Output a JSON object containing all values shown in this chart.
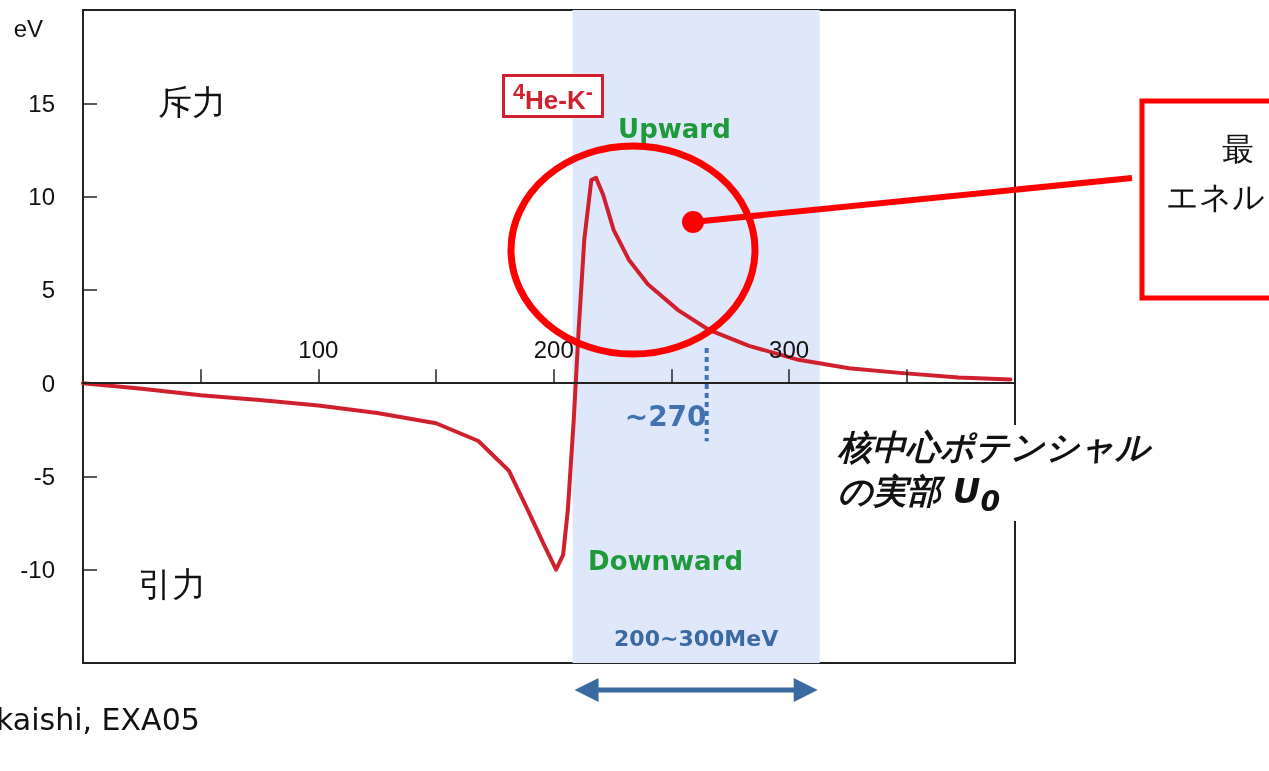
{
  "chart_data": {
    "type": "line",
    "ylabel": "eV",
    "x": [
      0,
      25,
      50,
      75,
      100,
      125,
      150,
      168,
      181,
      189,
      196,
      201,
      204,
      206,
      208.5,
      210.6,
      213,
      216,
      218,
      221,
      225.5,
      232,
      240,
      253,
      266,
      283,
      304,
      325.5,
      347,
      372,
      394
    ],
    "series": [
      {
        "name": "$^{4}$He-K$^{-}$",
        "color": "#d0202e",
        "values": [
          0,
          -0.3,
          -0.65,
          -0.9,
          -1.2,
          -1.6,
          -2.15,
          -3.1,
          -4.7,
          -6.8,
          -8.7,
          -10,
          -9.2,
          -6.8,
          -2,
          2.85,
          7.7,
          10.9,
          11.0,
          10.1,
          8.2,
          6.6,
          5.3,
          3.9,
          2.85,
          2.0,
          1.25,
          0.8,
          0.55,
          0.3,
          0.2
        ]
      }
    ],
    "xlim": [
      0,
      396
    ],
    "xticks": [
      {
        "value": 50,
        "label": null
      },
      100,
      {
        "value": 150,
        "label": null
      },
      200,
      {
        "value": 250,
        "label": null
      },
      300,
      {
        "value": 350,
        "label": null
      }
    ],
    "ylim": [
      -15,
      20
    ],
    "yticks": [
      -10,
      -5,
      0,
      5,
      10,
      15
    ],
    "bands": [
      {
        "axis": "x",
        "from": 208,
        "to": 313,
        "label": "200~300MeV",
        "color": "#dfe8fb"
      }
    ],
    "annotations": [
      "斥力",
      "引力",
      {
        "text": "Upward",
        "x": 218,
        "y": 11
      },
      {
        "text": "Downward",
        "x": 201,
        "y": -10
      },
      {
        "text": "~270",
        "x": 265,
        "y": 2.85
      },
      "核中心ポテンシャルの実部 U$_{0}$",
      "最",
      "エネル",
      "kaishi, EXA05"
    ],
    "grid": false,
    "marker": "none",
    "line_style": "solid"
  }
}
